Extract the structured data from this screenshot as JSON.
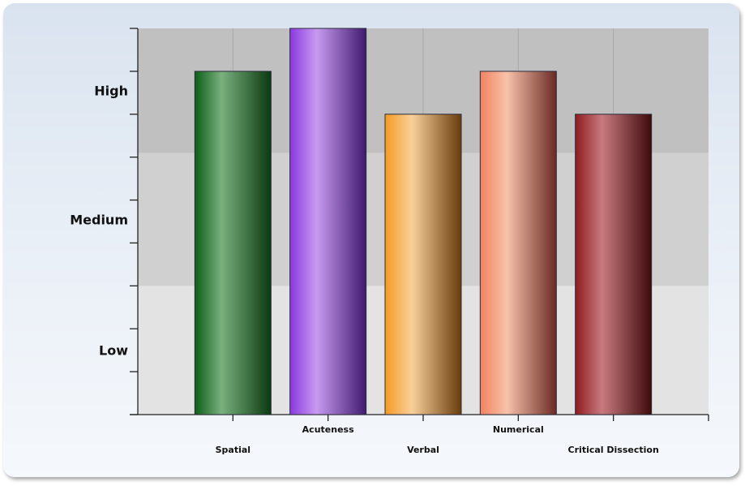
{
  "chart_data": {
    "type": "bar",
    "categories": [
      "Spatial",
      "Acuteness",
      "Verbal",
      "Numerical",
      "Critical Dissection"
    ],
    "values": [
      8,
      9,
      7,
      8,
      7
    ],
    "ylim": [
      0,
      9
    ],
    "y_tick_labels": [
      "Low",
      "Medium",
      "High"
    ],
    "y_bands": [
      {
        "label": "Low",
        "range": [
          0,
          3
        ]
      },
      {
        "label": "Medium",
        "range": [
          3,
          6.1
        ]
      },
      {
        "label": "High",
        "range": [
          6.1,
          9
        ]
      }
    ],
    "band_colors": [
      "#e4e3e4",
      "#d0d0d0",
      "#c0c0c0"
    ],
    "colors": [
      [
        "#0d5e18",
        "#79b07e",
        "#0b3a10"
      ],
      [
        "#8a39e0",
        "#c79af0",
        "#3f1a6e"
      ],
      [
        "#f59a22",
        "#f8d09a",
        "#6a3c0c"
      ],
      [
        "#f08260",
        "#f8c2aa",
        "#6a2a24"
      ],
      [
        "#8e1c20",
        "#c87a7e",
        "#3e0a0c"
      ]
    ],
    "grid": true,
    "legend": "none"
  }
}
